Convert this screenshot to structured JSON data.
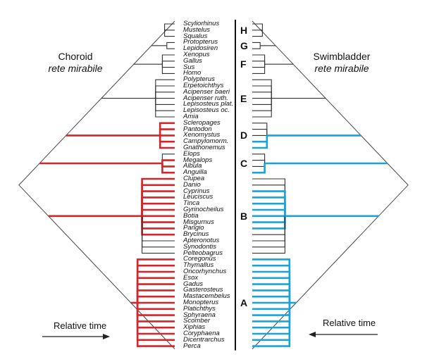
{
  "left_panel": {
    "title": "Choroid",
    "subtitle": "rete mirabile"
  },
  "right_panel": {
    "title": "Swimbladder",
    "subtitle": "rete mirabile"
  },
  "time_labels": {
    "left": "Relative time",
    "right": "Relative time"
  },
  "colors": {
    "choroid": "#d0262c",
    "swimbladder": "#1ba3d9",
    "absent": "#ffffff",
    "outline": "#333333"
  },
  "taxa": [
    {
      "name": "Scyliorhinus",
      "choroid": false,
      "swimbladder": false
    },
    {
      "name": "Mustelus",
      "choroid": false,
      "swimbladder": false
    },
    {
      "name": "Squalus",
      "choroid": false,
      "swimbladder": false
    },
    {
      "name": "Protopterus",
      "choroid": false,
      "swimbladder": false
    },
    {
      "name": "Lepidosiren",
      "choroid": false,
      "swimbladder": false
    },
    {
      "name": "Xenopus",
      "choroid": false,
      "swimbladder": false
    },
    {
      "name": "Gallus",
      "choroid": false,
      "swimbladder": false
    },
    {
      "name": "Sus",
      "choroid": false,
      "swimbladder": false
    },
    {
      "name": "Homo",
      "choroid": false,
      "swimbladder": false
    },
    {
      "name": "Polypterus",
      "choroid": false,
      "swimbladder": false
    },
    {
      "name": "Erpetoichthys",
      "choroid": false,
      "swimbladder": false
    },
    {
      "name": "Acipenser baeri",
      "choroid": false,
      "swimbladder": false
    },
    {
      "name": "Acipenser ruth.",
      "choroid": false,
      "swimbladder": false
    },
    {
      "name": "Lepisosteus plat.",
      "choroid": false,
      "swimbladder": false
    },
    {
      "name": "Lepisosteus oc.",
      "choroid": false,
      "swimbladder": false
    },
    {
      "name": "Amia",
      "choroid": false,
      "swimbladder": false
    },
    {
      "name": "Scleropages",
      "choroid": true,
      "swimbladder": false
    },
    {
      "name": "Pantodon",
      "choroid": true,
      "swimbladder": false
    },
    {
      "name": "Xenomystus",
      "choroid": true,
      "swimbladder": false
    },
    {
      "name": "Campylomorm.",
      "choroid": true,
      "swimbladder": true
    },
    {
      "name": "Gnathonemus",
      "choroid": true,
      "swimbladder": true
    },
    {
      "name": "Elops",
      "choroid": false,
      "swimbladder": false
    },
    {
      "name": "Megalops",
      "choroid": true,
      "swimbladder": false
    },
    {
      "name": "Albula",
      "choroid": true,
      "swimbladder": false
    },
    {
      "name": "Anguilla",
      "choroid": true,
      "swimbladder": true
    },
    {
      "name": "Clupea",
      "choroid": true,
      "swimbladder": false
    },
    {
      "name": "Danio",
      "choroid": true,
      "swimbladder": false
    },
    {
      "name": "Cyprinus",
      "choroid": true,
      "swimbladder": true
    },
    {
      "name": "Leuciscus",
      "choroid": true,
      "swimbladder": true
    },
    {
      "name": "Tinca",
      "choroid": true,
      "swimbladder": true
    },
    {
      "name": "Gyrinocheilus",
      "choroid": true,
      "swimbladder": true
    },
    {
      "name": "Botia",
      "choroid": true,
      "swimbladder": true
    },
    {
      "name": "Misgurnus",
      "choroid": true,
      "swimbladder": true
    },
    {
      "name": "Pangio",
      "choroid": true,
      "swimbladder": true
    },
    {
      "name": "Brycinus",
      "choroid": true,
      "swimbladder": false
    },
    {
      "name": "Apteronotus",
      "choroid": false,
      "swimbladder": false
    },
    {
      "name": "Synodontis",
      "choroid": false,
      "swimbladder": false
    },
    {
      "name": "Pelteobagrus",
      "choroid": false,
      "swimbladder": false
    },
    {
      "name": "Coregonus",
      "choroid": true,
      "swimbladder": true
    },
    {
      "name": "Thymallus",
      "choroid": true,
      "swimbladder": true
    },
    {
      "name": "Oncorhynchus",
      "choroid": true,
      "swimbladder": true
    },
    {
      "name": "Esox",
      "choroid": true,
      "swimbladder": true
    },
    {
      "name": "Gadus",
      "choroid": true,
      "swimbladder": true
    },
    {
      "name": "Gasterosteus",
      "choroid": true,
      "swimbladder": true
    },
    {
      "name": "Mastacembelus",
      "choroid": true,
      "swimbladder": true
    },
    {
      "name": "Monopterus",
      "choroid": true,
      "swimbladder": true
    },
    {
      "name": "Platichthys",
      "choroid": true,
      "swimbladder": true
    },
    {
      "name": "Sphyraena",
      "choroid": true,
      "swimbladder": true
    },
    {
      "name": "Scomber",
      "choroid": true,
      "swimbladder": true
    },
    {
      "name": "Xiphias",
      "choroid": true,
      "swimbladder": true
    },
    {
      "name": "Coryphaena",
      "choroid": true,
      "swimbladder": true
    },
    {
      "name": "Dicentrarchus",
      "choroid": true,
      "swimbladder": true
    },
    {
      "name": "Perca",
      "choroid": true,
      "swimbladder": true
    }
  ],
  "clades": [
    {
      "letter": "H",
      "first": 0,
      "last": 2
    },
    {
      "letter": "G",
      "first": 3,
      "last": 4
    },
    {
      "letter": "F",
      "first": 5,
      "last": 8
    },
    {
      "letter": "E",
      "first": 9,
      "last": 15
    },
    {
      "letter": "D",
      "first": 16,
      "last": 20
    },
    {
      "letter": "C",
      "first": 21,
      "last": 24
    },
    {
      "letter": "B",
      "first": 25,
      "last": 37
    },
    {
      "letter": "A",
      "first": 38,
      "last": 52
    }
  ]
}
